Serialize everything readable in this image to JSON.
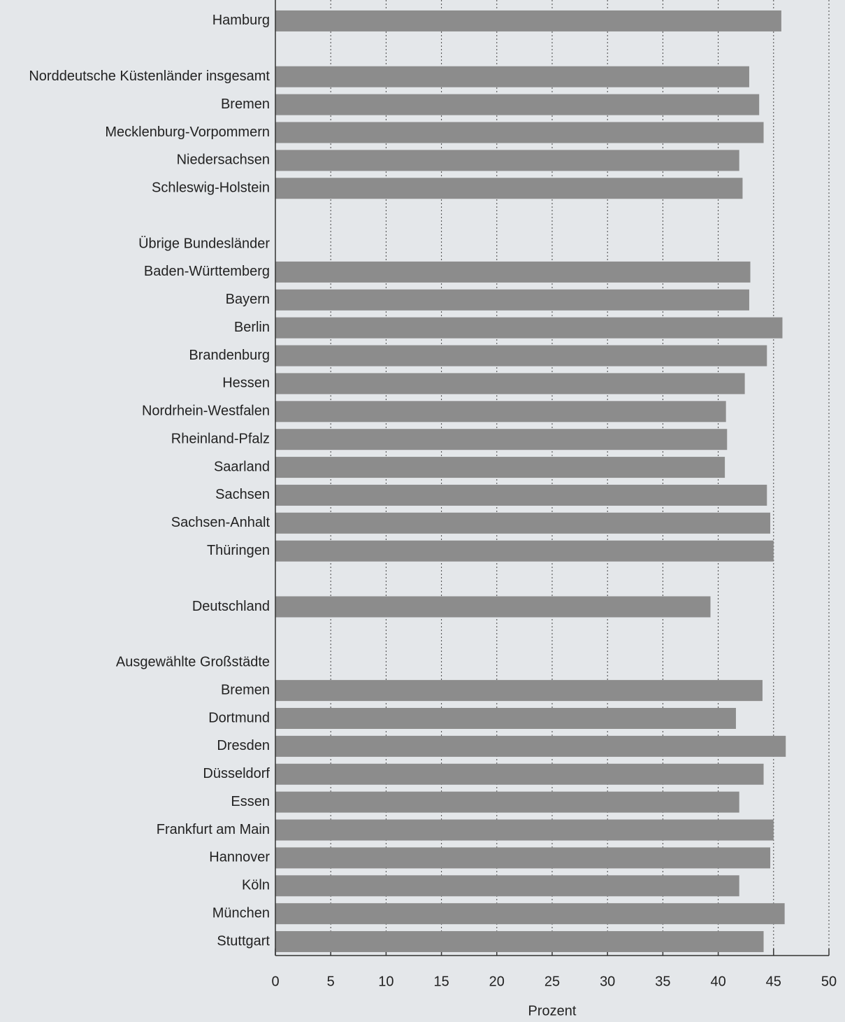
{
  "chart_data": {
    "type": "barh",
    "x_label": "Prozent",
    "categories": [
      "Hamburg",
      null,
      "Norddeutsche Küstenländer insgesamt",
      "Bremen",
      "Mecklenburg-Vorpommern",
      "Niedersachsen",
      "Schleswig-Holstein",
      null,
      "Übrige Bundesländer",
      "Baden-Württemberg",
      "Bayern",
      "Berlin",
      "Brandenburg",
      "Hessen",
      "Nordrhein-Westfalen",
      "Rheinland-Pfalz",
      "Saarland",
      "Sachsen",
      "Sachsen-Anhalt",
      "Thüringen",
      null,
      "Deutschland",
      null,
      "Ausgewählte Großstädte",
      "Bremen",
      "Dortmund",
      "Dresden",
      "Düsseldorf",
      "Essen",
      "Frankfurt am Main",
      "Hannover",
      "Köln",
      "München",
      "Stuttgart"
    ],
    "values": [
      45.7,
      null,
      42.8,
      43.7,
      44.1,
      41.9,
      42.2,
      null,
      null,
      42.9,
      42.8,
      45.8,
      44.4,
      42.4,
      40.7,
      40.8,
      40.6,
      44.4,
      44.7,
      45.0,
      null,
      39.3,
      null,
      null,
      44.0,
      41.6,
      46.1,
      44.1,
      41.9,
      45.0,
      44.7,
      41.9,
      46.0,
      44.1
    ],
    "color": "#8c8c8c",
    "xlim": [
      0,
      50
    ],
    "xticks": [
      0,
      5,
      10,
      15,
      20,
      25,
      30,
      35,
      40,
      45,
      50
    ],
    "grid": true
  }
}
